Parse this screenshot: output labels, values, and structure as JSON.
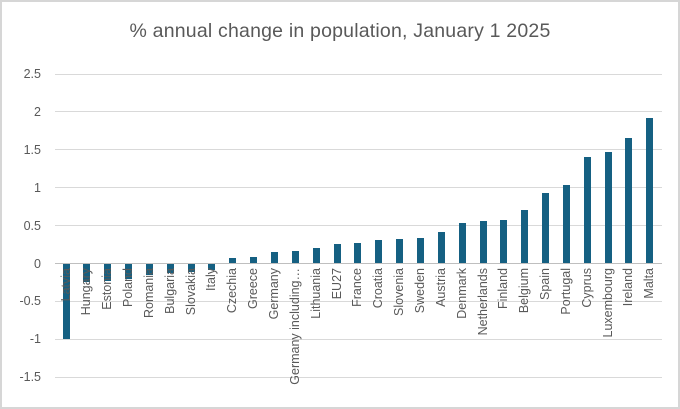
{
  "chart_data": {
    "type": "bar",
    "title": "% annual change in population, January 1 2025",
    "xlabel": "",
    "ylabel": "",
    "categories": [
      "Latvia",
      "Hungary",
      "Estonia",
      "Poland",
      "Romania",
      "Bulgaria",
      "Slovakia",
      "Italy",
      "Czechia",
      "Greece",
      "Germany",
      "Germany including…",
      "Lithuania",
      "EU27",
      "France",
      "Croatia",
      "Slovenia",
      "Sweden",
      "Austria",
      "Denmark",
      "Netherlands",
      "Finland",
      "Belgium",
      "Spain",
      "Portugal",
      "Cyprus",
      "Luxembourg",
      "Ireland",
      "Malta"
    ],
    "values": [
      -1.0,
      -0.25,
      -0.23,
      -0.21,
      -0.15,
      -0.13,
      -0.11,
      -0.08,
      0.07,
      0.09,
      0.15,
      0.16,
      0.2,
      0.26,
      0.27,
      0.31,
      0.32,
      0.34,
      0.41,
      0.53,
      0.56,
      0.58,
      0.7,
      0.93,
      1.03,
      1.4,
      1.47,
      1.65,
      1.92
    ],
    "ylim": [
      -1.5,
      2.5
    ],
    "yticks": [
      2.5,
      2,
      1.5,
      1,
      0.5,
      0,
      -0.5,
      -1,
      -1.5
    ],
    "grid": true,
    "legend": "none",
    "bar_color": "#156082",
    "gridline_color": "#d9d9d9",
    "zero_axis_color": "#bfbfbf",
    "text_color": "#595959",
    "border_color": "#d6d6d6",
    "background_color": "#ffffff"
  }
}
